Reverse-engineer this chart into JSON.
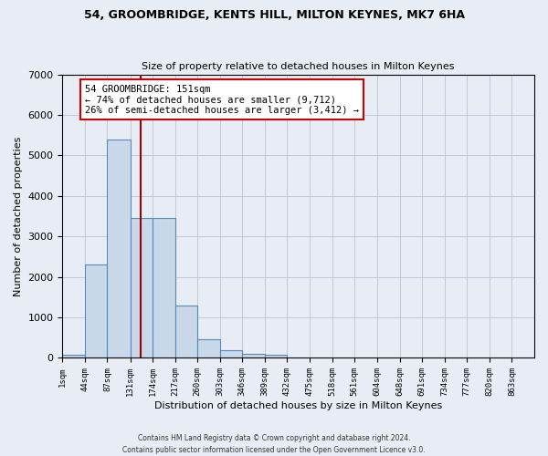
{
  "title1": "54, GROOMBRIDGE, KENTS HILL, MILTON KEYNES, MK7 6HA",
  "title2": "Size of property relative to detached houses in Milton Keynes",
  "xlabel": "Distribution of detached houses by size in Milton Keynes",
  "ylabel": "Number of detached properties",
  "bin_labels": [
    "1sqm",
    "44sqm",
    "87sqm",
    "131sqm",
    "174sqm",
    "217sqm",
    "260sqm",
    "303sqm",
    "346sqm",
    "389sqm",
    "432sqm",
    "475sqm",
    "518sqm",
    "561sqm",
    "604sqm",
    "648sqm",
    "691sqm",
    "734sqm",
    "777sqm",
    "820sqm",
    "863sqm"
  ],
  "bin_edges": [
    1,
    44,
    87,
    131,
    174,
    217,
    260,
    303,
    346,
    389,
    432,
    475,
    518,
    561,
    604,
    648,
    691,
    734,
    777,
    820,
    863
  ],
  "bar_heights": [
    75,
    2300,
    5400,
    3450,
    3450,
    1300,
    450,
    200,
    100,
    75,
    0,
    0,
    0,
    0,
    0,
    0,
    0,
    0,
    0,
    0
  ],
  "bar_color": "#c8d8e8",
  "bar_edge_color": "#5588bb",
  "vline_x": 151,
  "vline_color": "#990000",
  "annotation_text": "54 GROOMBRIDGE: 151sqm\n← 74% of detached houses are smaller (9,712)\n26% of semi-detached houses are larger (3,412) →",
  "annotation_box_color": "#ffffff",
  "annotation_box_edge_color": "#cc0000",
  "ylim": [
    0,
    7000
  ],
  "yticks": [
    0,
    1000,
    2000,
    3000,
    4000,
    5000,
    6000,
    7000
  ],
  "grid_color": "#c0c8d8",
  "bg_color": "#e8edf5",
  "footer": "Contains HM Land Registry data © Crown copyright and database right 2024.\nContains public sector information licensed under the Open Government Licence v3.0."
}
